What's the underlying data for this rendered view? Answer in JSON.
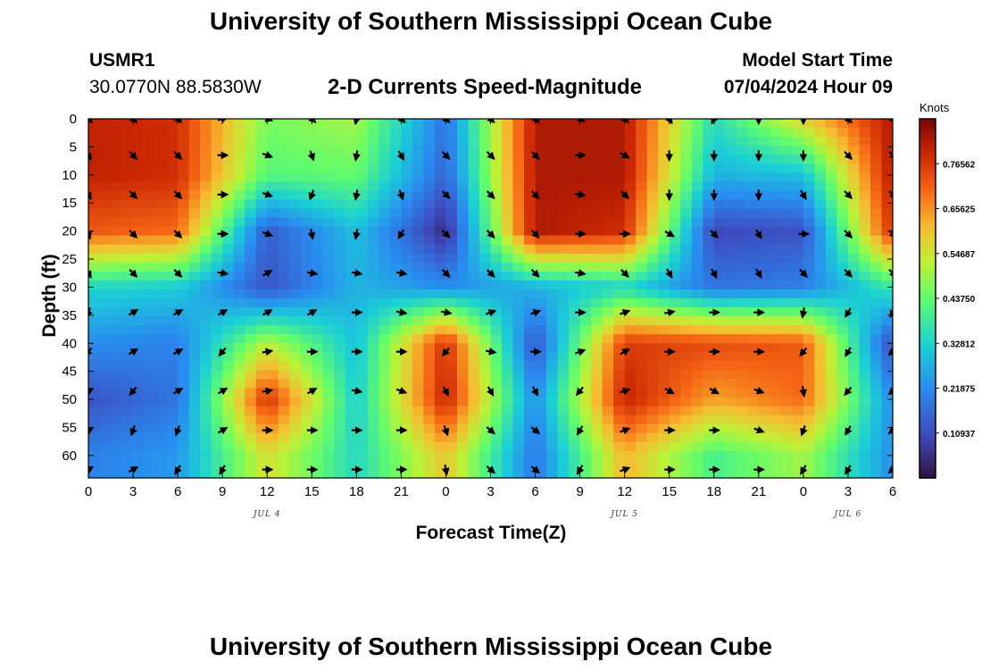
{
  "title": "University of Southern Mississippi Ocean Cube",
  "station": "USMR1",
  "coords": "30.0770N  88.5830W",
  "subtitle": "2-D Currents Speed-Magnitude",
  "model_start_label": "Model Start Time",
  "model_start_value": "07/04/2024 Hour 09",
  "bottom_title": "University of Southern Mississippi Ocean Cube",
  "chart_data": {
    "type": "heatmap",
    "title": "2-D Currents Speed-Magnitude",
    "xlabel": "Forecast Time(Z)",
    "ylabel": "Depth (ft)",
    "units": "Knots",
    "x_range_hours": [
      0,
      54
    ],
    "y_range_ft": [
      0,
      64
    ],
    "y_inverted": true,
    "x_ticks": [
      "0",
      "3",
      "6",
      "9",
      "12",
      "15",
      "18",
      "21",
      "0",
      "3",
      "6",
      "9",
      "12",
      "15",
      "18",
      "21",
      "0",
      "3",
      "6"
    ],
    "y_ticks": [
      "0",
      "5",
      "10",
      "15",
      "20",
      "25",
      "30",
      "35",
      "40",
      "45",
      "50",
      "55",
      "60"
    ],
    "date_labels": [
      {
        "label": "JUL 4",
        "hour": 12
      },
      {
        "label": "JUL 5",
        "hour": 36
      },
      {
        "label": "JUL 6",
        "hour": 51
      }
    ],
    "colorbar": {
      "min": 0.0,
      "max": 0.875,
      "labels": [
        "0.76562",
        "0.65625",
        "0.54687",
        "0.43750",
        "0.32812",
        "0.21875",
        "0.10937"
      ],
      "label_values": [
        0.765625,
        0.65625,
        0.546875,
        0.4375,
        0.328125,
        0.21875,
        0.109375
      ]
    },
    "speed_field_knots": {
      "time_hours": [
        0,
        6,
        12,
        18,
        24,
        30,
        36,
        42,
        48,
        54
      ],
      "depth_ft": [
        0,
        10,
        20,
        30,
        40,
        50,
        60
      ],
      "values": [
        [
          0.8,
          0.78,
          0.46,
          0.5,
          0.18,
          0.82,
          0.82,
          0.35,
          0.58,
          0.82
        ],
        [
          0.8,
          0.78,
          0.42,
          0.44,
          0.15,
          0.82,
          0.82,
          0.28,
          0.3,
          0.82
        ],
        [
          0.72,
          0.7,
          0.14,
          0.3,
          0.05,
          0.82,
          0.78,
          0.1,
          0.12,
          0.78
        ],
        [
          0.34,
          0.32,
          0.12,
          0.28,
          0.22,
          0.28,
          0.34,
          0.18,
          0.2,
          0.38
        ],
        [
          0.22,
          0.2,
          0.52,
          0.3,
          0.78,
          0.12,
          0.76,
          0.74,
          0.72,
          0.1
        ],
        [
          0.12,
          0.18,
          0.78,
          0.32,
          0.8,
          0.22,
          0.8,
          0.64,
          0.7,
          0.22
        ],
        [
          0.2,
          0.24,
          0.56,
          0.34,
          0.6,
          0.18,
          0.62,
          0.4,
          0.5,
          0.22
        ]
      ]
    },
    "vectors": {
      "time_hours": [
        0,
        3,
        6,
        9,
        12,
        15,
        18,
        21,
        24,
        27,
        30,
        33,
        36,
        39,
        42,
        45,
        48,
        51,
        54
      ],
      "depth_ft": [
        0,
        6.5,
        13.5,
        20.5,
        27.5,
        34.5,
        41.5,
        48.5,
        55.5,
        62.5
      ],
      "direction_deg": [
        [
          45,
          45,
          45,
          -15,
          20,
          45,
          105,
          45,
          45,
          45,
          45,
          30,
          45,
          60,
          115,
          90,
          90,
          45,
          45
        ],
        [
          60,
          45,
          45,
          0,
          20,
          70,
          100,
          60,
          45,
          45,
          45,
          0,
          30,
          90,
          90,
          90,
          90,
          45,
          45
        ],
        [
          60,
          45,
          45,
          0,
          20,
          110,
          100,
          70,
          45,
          45,
          45,
          10,
          45,
          90,
          90,
          90,
          60,
          45,
          45
        ],
        [
          70,
          45,
          45,
          0,
          20,
          80,
          100,
          120,
          45,
          45,
          45,
          0,
          0,
          30,
          45,
          60,
          0,
          45,
          45
        ],
        [
          60,
          45,
          45,
          10,
          -30,
          10,
          10,
          10,
          45,
          45,
          45,
          10,
          45,
          60,
          60,
          60,
          45,
          45,
          45
        ],
        [
          110,
          -30,
          -30,
          -30,
          -30,
          -30,
          0,
          10,
          10,
          -20,
          -20,
          0,
          -20,
          -10,
          0,
          0,
          100,
          120,
          120
        ],
        [
          130,
          -30,
          -30,
          130,
          -10,
          0,
          0,
          0,
          130,
          10,
          0,
          -20,
          -30,
          0,
          0,
          0,
          130,
          120,
          140
        ],
        [
          -30,
          130,
          -30,
          -30,
          -10,
          -30,
          10,
          20,
          60,
          60,
          60,
          130,
          -20,
          30,
          30,
          20,
          80,
          130,
          140
        ],
        [
          -30,
          110,
          110,
          -30,
          0,
          0,
          0,
          0,
          70,
          40,
          40,
          120,
          -20,
          0,
          0,
          20,
          110,
          120,
          140
        ],
        [
          -30,
          -30,
          120,
          120,
          0,
          0,
          0,
          0,
          80,
          40,
          40,
          120,
          -20,
          0,
          0,
          0,
          120,
          120,
          140
        ]
      ]
    }
  }
}
